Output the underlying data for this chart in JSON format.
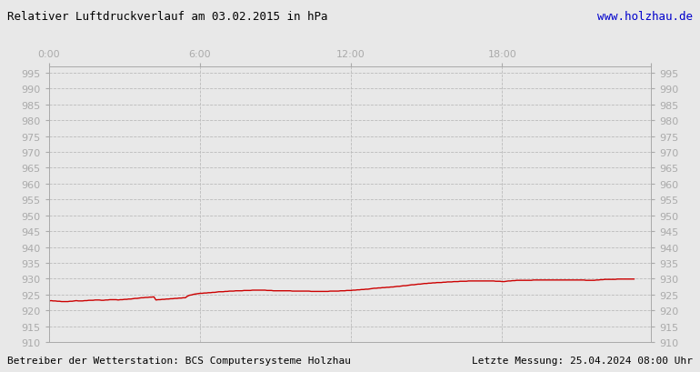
{
  "title_left": "Relativer Luftdruckverlauf am 03.02.2015 in hPa",
  "title_right": "www.holzhau.de",
  "footer_left": "Betreiber der Wetterstation: BCS Computersysteme Holzhau",
  "footer_right": "Letzte Messung: 25.04.2024 08:00 Uhr",
  "bg_color": "#e8e8e8",
  "plot_bg_color": "#e8e8e8",
  "grid_color": "#bbbbbb",
  "line_color": "#cc0000",
  "title_color_left": "#000000",
  "title_color_right": "#0000cc",
  "footer_color": "#000000",
  "tick_label_color": "#aaaaaa",
  "xlim": [
    0,
    287
  ],
  "ylim": [
    910,
    997
  ],
  "ytick_start": 910,
  "ytick_end": 995,
  "ytick_step": 5,
  "xticks_pos": [
    0,
    72,
    144,
    216,
    287
  ],
  "xticks_labels": [
    "0:00",
    "6:00",
    "12:00",
    "18:00",
    ""
  ],
  "pressure_values": [
    923.0,
    923.1,
    923.0,
    923.0,
    922.9,
    922.9,
    922.8,
    922.8,
    922.8,
    922.8,
    922.9,
    922.9,
    923.0,
    923.1,
    923.0,
    923.0,
    923.0,
    923.1,
    923.1,
    923.2,
    923.2,
    923.2,
    923.3,
    923.3,
    923.3,
    923.2,
    923.2,
    923.3,
    923.3,
    923.4,
    923.4,
    923.4,
    923.4,
    923.3,
    923.4,
    923.4,
    923.5,
    923.5,
    923.6,
    923.6,
    923.7,
    923.8,
    923.8,
    923.9,
    924.0,
    924.0,
    924.1,
    924.1,
    924.2,
    924.2,
    924.3,
    923.3,
    923.4,
    923.4,
    923.5,
    923.5,
    923.6,
    923.6,
    923.7,
    923.7,
    923.8,
    923.8,
    923.9,
    923.9,
    924.0,
    924.0,
    924.5,
    924.8,
    924.9,
    925.1,
    925.2,
    925.3,
    925.4,
    925.4,
    925.5,
    925.5,
    925.6,
    925.6,
    925.7,
    925.7,
    925.8,
    925.9,
    925.9,
    925.9,
    926.0,
    926.0,
    926.1,
    926.1,
    926.1,
    926.2,
    926.2,
    926.2,
    926.2,
    926.3,
    926.3,
    926.3,
    926.3,
    926.4,
    926.4,
    926.4,
    926.4,
    926.4,
    926.4,
    926.4,
    926.3,
    926.3,
    926.3,
    926.2,
    926.2,
    926.2,
    926.2,
    926.2,
    926.2,
    926.2,
    926.2,
    926.2,
    926.1,
    926.1,
    926.1,
    926.1,
    926.1,
    926.1,
    926.1,
    926.1,
    926.1,
    926.0,
    926.0,
    926.0,
    926.0,
    926.0,
    926.0,
    926.0,
    926.0,
    926.0,
    926.1,
    926.1,
    926.1,
    926.1,
    926.1,
    926.2,
    926.2,
    926.2,
    926.3,
    926.3,
    926.3,
    926.4,
    926.4,
    926.5,
    926.5,
    926.6,
    926.6,
    926.7,
    926.7,
    926.8,
    926.9,
    927.0,
    927.0,
    927.1,
    927.1,
    927.2,
    927.2,
    927.3,
    927.3,
    927.4,
    927.4,
    927.5,
    927.6,
    927.6,
    927.7,
    927.8,
    927.8,
    927.9,
    928.0,
    928.1,
    928.1,
    928.2,
    928.3,
    928.3,
    928.4,
    928.5,
    928.5,
    928.6,
    928.6,
    928.7,
    928.7,
    928.8,
    928.8,
    928.8,
    928.9,
    928.9,
    929.0,
    929.0,
    929.0,
    929.1,
    929.1,
    929.1,
    929.2,
    929.2,
    929.2,
    929.2,
    929.3,
    929.3,
    929.3,
    929.3,
    929.3,
    929.3,
    929.3,
    929.3,
    929.3,
    929.3,
    929.3,
    929.3,
    929.3,
    929.2,
    929.2,
    929.2,
    929.1,
    929.1,
    929.2,
    929.3,
    929.3,
    929.4,
    929.4,
    929.5,
    929.5,
    929.5,
    929.5,
    929.5,
    929.5,
    929.5,
    929.5,
    929.6,
    929.6,
    929.6,
    929.6,
    929.6,
    929.6,
    929.6,
    929.6,
    929.6,
    929.6,
    929.6,
    929.6,
    929.6,
    929.6,
    929.6,
    929.6,
    929.6,
    929.6,
    929.6,
    929.6,
    929.6,
    929.6,
    929.6,
    929.6,
    929.6,
    929.5,
    929.5,
    929.5,
    929.5,
    929.5,
    929.6,
    929.6,
    929.7,
    929.7,
    929.8,
    929.8,
    929.8,
    929.8,
    929.8,
    929.8,
    929.9,
    929.9,
    929.9,
    929.9,
    929.9,
    929.9,
    929.9,
    929.9,
    929.9
  ]
}
